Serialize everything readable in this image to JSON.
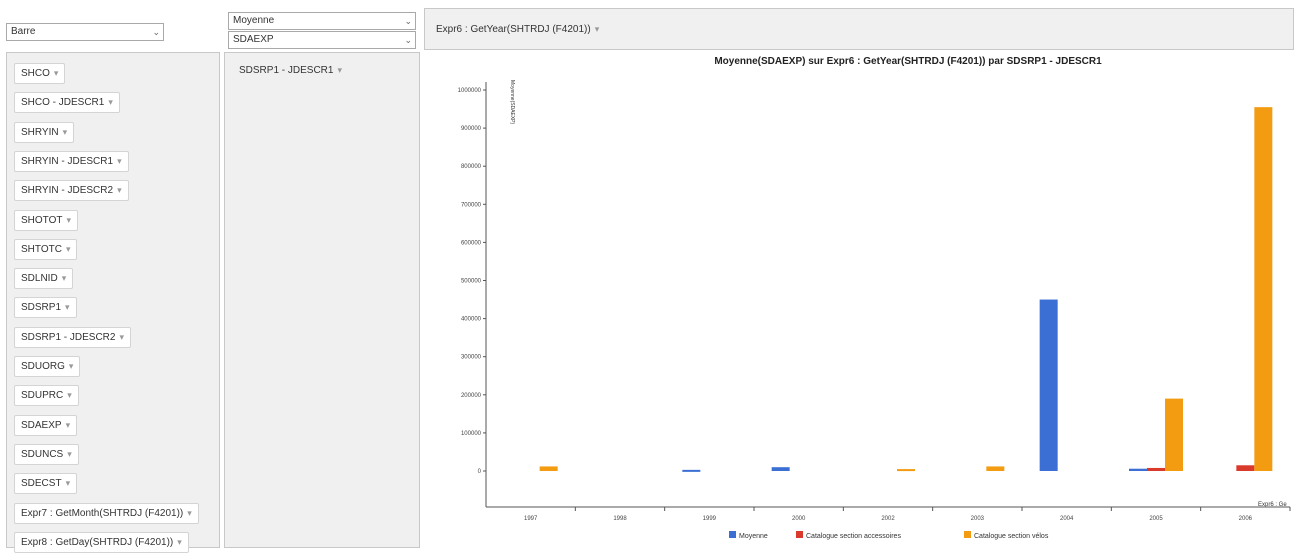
{
  "chart_type_select": {
    "value": "Barre"
  },
  "aggregation_select": {
    "value": "Moyenne"
  },
  "measure_select": {
    "value": "SDAEXP"
  },
  "column_field": {
    "label": "Expr6 : GetYear(SHTRDJ (F4201))"
  },
  "row_field": {
    "label": "SDSRP1 - JDESCR1"
  },
  "remove_glyph": "▾",
  "available_fields": [
    "SHCO",
    "SHCO - JDESCR1",
    "SHRYIN",
    "SHRYIN - JDESCR1",
    "SHRYIN - JDESCR2",
    "SHOTOT",
    "SHTOTC",
    "SDLNID",
    "SDSRP1",
    "SDSRP1 - JDESCR2",
    "SDUORG",
    "SDUPRC",
    "SDAEXP",
    "SDUNCS",
    "SDECST",
    "Expr7 : GetMonth(SHTRDJ (F4201))",
    "Expr8 : GetDay(SHTRDJ (F4201))"
  ],
  "chart_data": {
    "type": "bar",
    "title": "Moyenne(SDAEXP) sur Expr6 : GetYear(SHTRDJ (F4201)) par SDSRP1 - JDESCR1",
    "ylabel": "Moyenne(SDAEXP)",
    "xlabel": "Expr6 : Ge",
    "categories": [
      "1997",
      "1998",
      "1999",
      "2000",
      "2002",
      "2003",
      "2004",
      "2005",
      "2006"
    ],
    "y_ticks": [
      "0",
      "100000",
      "200000",
      "300000",
      "400000",
      "500000",
      "600000",
      "700000",
      "800000",
      "900000",
      "1000000"
    ],
    "ylim": [
      0,
      1000000
    ],
    "legend_position": "bottom",
    "series": [
      {
        "name": "Moyenne",
        "color": "#3b6fd4",
        "values": [
          null,
          null,
          3000,
          10000,
          null,
          null,
          450000,
          6000,
          null
        ]
      },
      {
        "name": "Catalogue section accessoires",
        "color": "#d93a2b",
        "values": [
          null,
          null,
          null,
          null,
          null,
          null,
          null,
          8000,
          15000
        ]
      },
      {
        "name": "Catalogue section vélos",
        "color": "#f39c12",
        "values": [
          12000,
          null,
          null,
          null,
          5000,
          12000,
          null,
          190000,
          955000
        ]
      }
    ]
  }
}
